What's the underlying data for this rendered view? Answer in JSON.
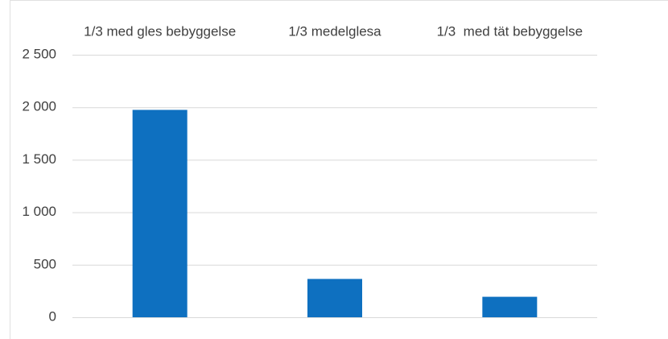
{
  "chart_data": {
    "type": "bar",
    "categories": [
      "1/3 med gles bebyggelse",
      "1/3 medelglesa",
      "1/3  med tät bebyggelse"
    ],
    "values": [
      1975,
      365,
      195
    ],
    "color": "#0e70c0",
    "ylim": [
      0,
      2500
    ],
    "yticks": [
      0,
      500,
      {
        "value": 1000,
        "label": "1 000"
      },
      {
        "value": 1500,
        "label": "1 500"
      },
      {
        "value": 2000,
        "label": "2 000"
      },
      {
        "value": 2500,
        "label": "2 500"
      }
    ],
    "grid": true
  }
}
